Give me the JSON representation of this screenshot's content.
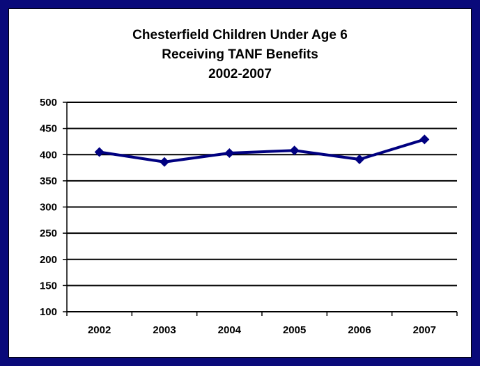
{
  "chart_data": {
    "type": "line",
    "title_lines": [
      "Chesterfield Children Under Age 6",
      "Receiving TANF Benefits",
      "2002-2007"
    ],
    "categories": [
      "2002",
      "2003",
      "2004",
      "2005",
      "2006",
      "2007"
    ],
    "series": [
      {
        "values": [
          405,
          386,
          403,
          408,
          391,
          429
        ]
      }
    ],
    "ylim": [
      100,
      500
    ],
    "yticks": [
      100,
      150,
      200,
      250,
      300,
      350,
      400,
      450,
      500
    ],
    "grid": true,
    "legend": "none",
    "colors": {
      "line": "#000080",
      "frame": "#0a0a7a",
      "grid": "#000000"
    }
  }
}
